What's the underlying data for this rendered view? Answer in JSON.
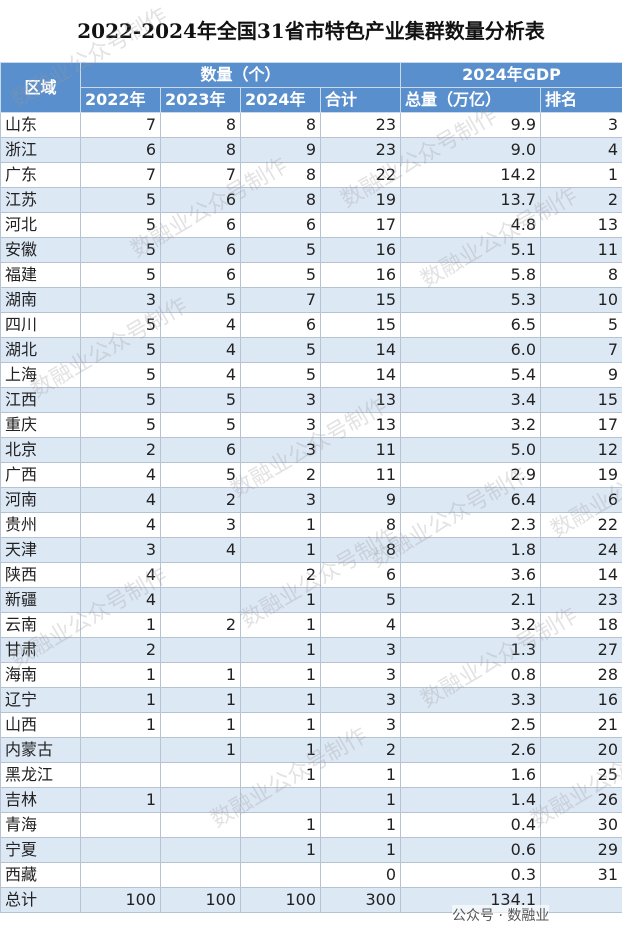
{
  "title": "2022-2024年全国31省市特色产业集群数量分析表",
  "header": {
    "region": "区域",
    "count_group": "数量（个）",
    "gdp_group": "2024年GDP",
    "columns": [
      "2022年",
      "2023年",
      "2024年",
      "合计",
      "总量（万亿）",
      "排名"
    ]
  },
  "table": {
    "rows": [
      [
        "山东",
        "7",
        "8",
        "8",
        "23",
        "9.9",
        "3"
      ],
      [
        "浙江",
        "6",
        "8",
        "9",
        "23",
        "9.0",
        "4"
      ],
      [
        "广东",
        "7",
        "7",
        "8",
        "22",
        "14.2",
        "1"
      ],
      [
        "江苏",
        "5",
        "6",
        "8",
        "19",
        "13.7",
        "2"
      ],
      [
        "河北",
        "5",
        "6",
        "6",
        "17",
        "4.8",
        "13"
      ],
      [
        "安徽",
        "5",
        "6",
        "5",
        "16",
        "5.1",
        "11"
      ],
      [
        "福建",
        "5",
        "6",
        "5",
        "16",
        "5.8",
        "8"
      ],
      [
        "湖南",
        "3",
        "5",
        "7",
        "15",
        "5.3",
        "10"
      ],
      [
        "四川",
        "5",
        "4",
        "6",
        "15",
        "6.5",
        "5"
      ],
      [
        "湖北",
        "5",
        "4",
        "5",
        "14",
        "6.0",
        "7"
      ],
      [
        "上海",
        "5",
        "4",
        "5",
        "14",
        "5.4",
        "9"
      ],
      [
        "江西",
        "5",
        "5",
        "3",
        "13",
        "3.4",
        "15"
      ],
      [
        "重庆",
        "5",
        "5",
        "3",
        "13",
        "3.2",
        "17"
      ],
      [
        "北京",
        "2",
        "6",
        "3",
        "11",
        "5.0",
        "12"
      ],
      [
        "广西",
        "4",
        "5",
        "2",
        "11",
        "2.9",
        "19"
      ],
      [
        "河南",
        "4",
        "2",
        "3",
        "9",
        "6.4",
        "6"
      ],
      [
        "贵州",
        "4",
        "3",
        "1",
        "8",
        "2.3",
        "22"
      ],
      [
        "天津",
        "3",
        "4",
        "1",
        "8",
        "1.8",
        "24"
      ],
      [
        "陕西",
        "4",
        null,
        "2",
        "6",
        "3.6",
        "14"
      ],
      [
        "新疆",
        "4",
        null,
        "1",
        "5",
        "2.1",
        "23"
      ],
      [
        "云南",
        "1",
        "2",
        "1",
        "4",
        "3.2",
        "18"
      ],
      [
        "甘肃",
        "2",
        null,
        "1",
        "3",
        "1.3",
        "27"
      ],
      [
        "海南",
        "1",
        "1",
        "1",
        "3",
        "0.8",
        "28"
      ],
      [
        "辽宁",
        "1",
        "1",
        "1",
        "3",
        "3.3",
        "16"
      ],
      [
        "山西",
        "1",
        "1",
        "1",
        "3",
        "2.5",
        "21"
      ],
      [
        "内蒙古",
        null,
        "1",
        "1",
        "2",
        "2.6",
        "20"
      ],
      [
        "黑龙江",
        null,
        null,
        "1",
        "1",
        "1.6",
        "25"
      ],
      [
        "吉林",
        "1",
        null,
        null,
        "1",
        "1.4",
        "26"
      ],
      [
        "青海",
        null,
        null,
        "1",
        "1",
        "0.4",
        "30"
      ],
      [
        "宁夏",
        null,
        null,
        "1",
        "1",
        "0.6",
        "29"
      ],
      [
        "西藏",
        null,
        null,
        null,
        "0",
        "0.3",
        "31"
      ],
      [
        "总计",
        "100",
        "100",
        "100",
        "300",
        "134.1",
        null
      ]
    ]
  },
  "watermark": "数融业公众号制作",
  "footer_logo": "公众号 · 数融业"
}
